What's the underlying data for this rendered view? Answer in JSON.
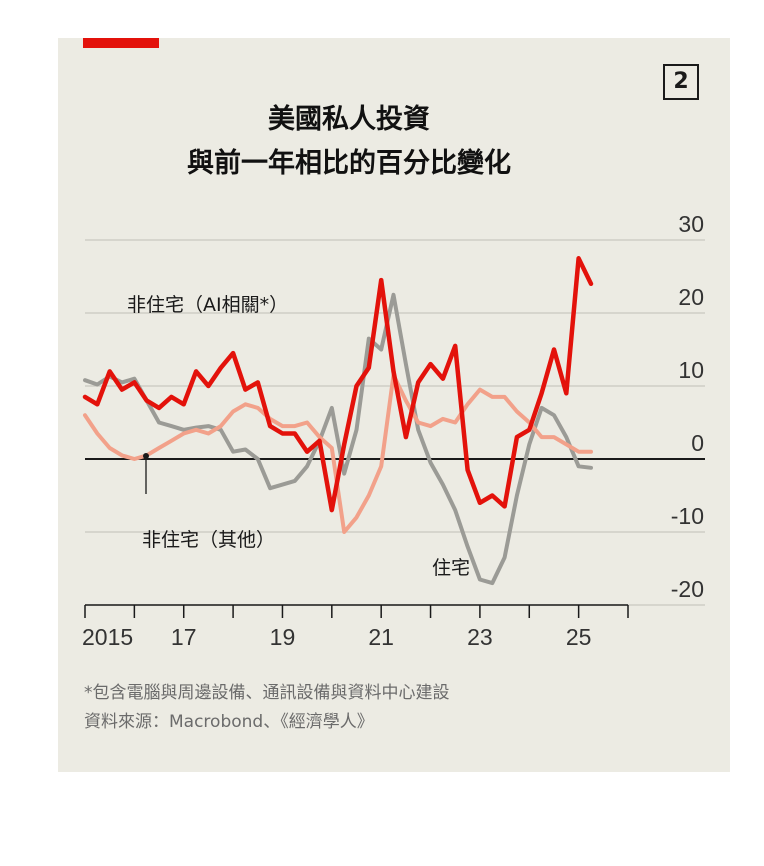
{
  "badge": "2",
  "title_line1": "美國私人投資",
  "title_line2": "與前一年相比的百分比變化",
  "footnote": "*包含電腦與周邊設備、通訊設備與資料中心建設",
  "source": "資料來源：Macrobond、《經濟學人》",
  "colors": {
    "ai": "#e3120b",
    "other": "#f2a18a",
    "residential": "#9b9b96",
    "grid": "#c9c8c0",
    "zero": "#1a1a1a"
  },
  "chart_data": {
    "type": "line",
    "xlim": [
      2015,
      2026
    ],
    "ylim": [
      -20,
      30
    ],
    "y_ticks": [
      30,
      20,
      10,
      0,
      -10,
      -20
    ],
    "x_tick_labels": [
      {
        "x": 2015,
        "label": "2015"
      },
      {
        "x": 2017,
        "label": "17"
      },
      {
        "x": 2019,
        "label": "19"
      },
      {
        "x": 2021,
        "label": "21"
      },
      {
        "x": 2023,
        "label": "23"
      },
      {
        "x": 2025,
        "label": "25"
      }
    ],
    "x_minor_ticks": [
      2015,
      2016,
      2017,
      2018,
      2019,
      2020,
      2021,
      2022,
      2023,
      2024,
      2025,
      2026
    ],
    "grid": true,
    "series": [
      {
        "name": "住宅",
        "key": "residential",
        "x": [
          2015.0,
          2015.25,
          2015.5,
          2015.75,
          2016.0,
          2016.25,
          2016.5,
          2016.75,
          2017.0,
          2017.25,
          2017.5,
          2017.75,
          2018.0,
          2018.25,
          2018.5,
          2018.75,
          2019.0,
          2019.25,
          2019.5,
          2019.75,
          2020.0,
          2020.25,
          2020.5,
          2020.75,
          2021.0,
          2021.25,
          2021.5,
          2021.75,
          2022.0,
          2022.25,
          2022.5,
          2022.75,
          2023.0,
          2023.25,
          2023.5,
          2023.75,
          2024.0,
          2024.25,
          2024.5,
          2024.75,
          2025.0,
          2025.25
        ],
        "y": [
          10.8,
          10.2,
          11.3,
          10.5,
          11.0,
          8.0,
          5.0,
          4.5,
          4.0,
          4.3,
          4.5,
          4.0,
          1.0,
          1.3,
          0.0,
          -4.0,
          -3.5,
          -3.0,
          -1.0,
          2.5,
          7.0,
          -2.0,
          4.0,
          16.5,
          15.0,
          22.5,
          13.0,
          4.0,
          -0.5,
          -3.5,
          -7.0,
          -12.0,
          -16.5,
          -17.0,
          -13.5,
          -5.0,
          2.0,
          7.0,
          6.0,
          3.0,
          -1.0,
          -1.2
        ]
      },
      {
        "name": "非住宅（其他）",
        "key": "other",
        "x": [
          2015.0,
          2015.25,
          2015.5,
          2015.75,
          2016.0,
          2016.25,
          2016.5,
          2016.75,
          2017.0,
          2017.25,
          2017.5,
          2017.75,
          2018.0,
          2018.25,
          2018.5,
          2018.75,
          2019.0,
          2019.25,
          2019.5,
          2019.75,
          2020.0,
          2020.25,
          2020.5,
          2020.75,
          2021.0,
          2021.25,
          2021.5,
          2021.75,
          2022.0,
          2022.25,
          2022.5,
          2022.75,
          2023.0,
          2023.25,
          2023.5,
          2023.75,
          2024.0,
          2024.25,
          2024.5,
          2024.75,
          2025.0,
          2025.25
        ],
        "y": [
          6.0,
          3.5,
          1.5,
          0.5,
          0.0,
          0.5,
          1.5,
          2.5,
          3.5,
          4.0,
          3.5,
          4.5,
          6.5,
          7.5,
          7.0,
          5.5,
          4.5,
          4.5,
          5.0,
          3.0,
          1.5,
          -10.0,
          -8.0,
          -5.0,
          -1.0,
          11.5,
          8.0,
          5.0,
          4.5,
          5.5,
          5.0,
          7.5,
          9.5,
          8.5,
          8.5,
          6.5,
          5.0,
          3.0,
          3.0,
          2.0,
          1.0,
          1.0
        ]
      },
      {
        "name": "非住宅（AI相關*）",
        "key": "ai",
        "x": [
          2015.0,
          2015.25,
          2015.5,
          2015.75,
          2016.0,
          2016.25,
          2016.5,
          2016.75,
          2017.0,
          2017.25,
          2017.5,
          2017.75,
          2018.0,
          2018.25,
          2018.5,
          2018.75,
          2019.0,
          2019.25,
          2019.5,
          2019.75,
          2020.0,
          2020.25,
          2020.5,
          2020.75,
          2021.0,
          2021.25,
          2021.5,
          2021.75,
          2022.0,
          2022.25,
          2022.5,
          2022.75,
          2023.0,
          2023.25,
          2023.5,
          2023.75,
          2024.0,
          2024.25,
          2024.5,
          2024.75,
          2025.0,
          2025.25
        ],
        "y": [
          8.5,
          7.5,
          12.0,
          9.5,
          10.5,
          8.0,
          7.0,
          8.5,
          7.5,
          12.0,
          10.0,
          12.5,
          14.5,
          9.5,
          10.5,
          4.5,
          3.5,
          3.5,
          1.0,
          2.5,
          -7.0,
          2.0,
          10.0,
          12.5,
          24.5,
          12.0,
          3.0,
          10.5,
          13.0,
          11.0,
          15.5,
          -1.5,
          -6.0,
          -5.0,
          -6.5,
          3.0,
          4.0,
          9.0,
          15.0,
          9.0,
          27.5,
          24.0
        ]
      }
    ],
    "annotations": [
      {
        "text": "非住宅（AI相關*）",
        "series": "ai"
      },
      {
        "text": "非住宅（其他）",
        "series": "other"
      },
      {
        "text": "住宅",
        "series": "residential"
      }
    ]
  }
}
